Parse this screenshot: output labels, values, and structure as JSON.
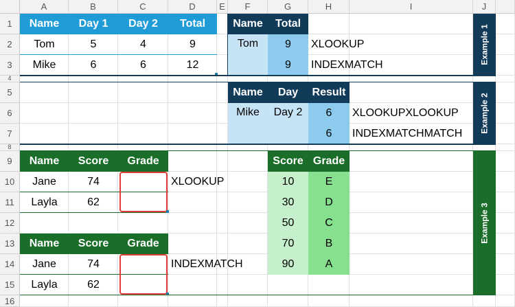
{
  "columns": [
    "A",
    "B",
    "C",
    "D",
    "E",
    "F",
    "G",
    "H",
    "I",
    "J"
  ],
  "rows": [
    "1",
    "2",
    "3",
    "4",
    "5",
    "6",
    "7",
    "8",
    "9",
    "10",
    "11",
    "12",
    "13",
    "14",
    "15",
    "16"
  ],
  "colors": {
    "blue_header": "#1f9bd6",
    "navy_header": "#123b5a",
    "light_blue": "#c6e4f5",
    "mid_blue": "#8ccbee",
    "dark_green": "#1a6e2a",
    "light_green": "#c6efcc",
    "mid_green": "#86e08f",
    "red_outline": "#e03c3c"
  },
  "example1": {
    "band_label": "Example 1",
    "source_headers": [
      "Name",
      "Day 1",
      "Day 2",
      "Total"
    ],
    "source_rows": [
      [
        "Tom",
        "5",
        "4",
        "9"
      ],
      [
        "Mike",
        "6",
        "6",
        "12"
      ]
    ],
    "lookup_headers": [
      "Name",
      "Total"
    ],
    "lookup_name": "Tom",
    "results": [
      "9",
      "9"
    ],
    "labels": [
      "XLOOKUP",
      "INDEXMATCH"
    ]
  },
  "example2": {
    "band_label": "Example 2",
    "headers": [
      "Name",
      "Day",
      "Result"
    ],
    "name": "Mike",
    "day": "Day 2",
    "results": [
      "6",
      "6"
    ],
    "labels": [
      "XLOOKUPXLOOKUP",
      "INDEXMATCHMATCH"
    ]
  },
  "example3": {
    "band_label": "Example 3",
    "table_headers": [
      "Name",
      "Score",
      "Grade"
    ],
    "table1_rows": [
      [
        "Jane",
        "74",
        ""
      ],
      [
        "Layla",
        "62",
        ""
      ]
    ],
    "table2_rows": [
      [
        "Jane",
        "74",
        ""
      ],
      [
        "Layla",
        "62",
        ""
      ]
    ],
    "label_top": "XLOOKUP",
    "label_bottom": "INDEXMATCH",
    "grade_headers": [
      "Score",
      "Grade"
    ],
    "grade_rows": [
      [
        "10",
        "E"
      ],
      [
        "30",
        "D"
      ],
      [
        "50",
        "C"
      ],
      [
        "70",
        "B"
      ],
      [
        "90",
        "A"
      ]
    ]
  }
}
